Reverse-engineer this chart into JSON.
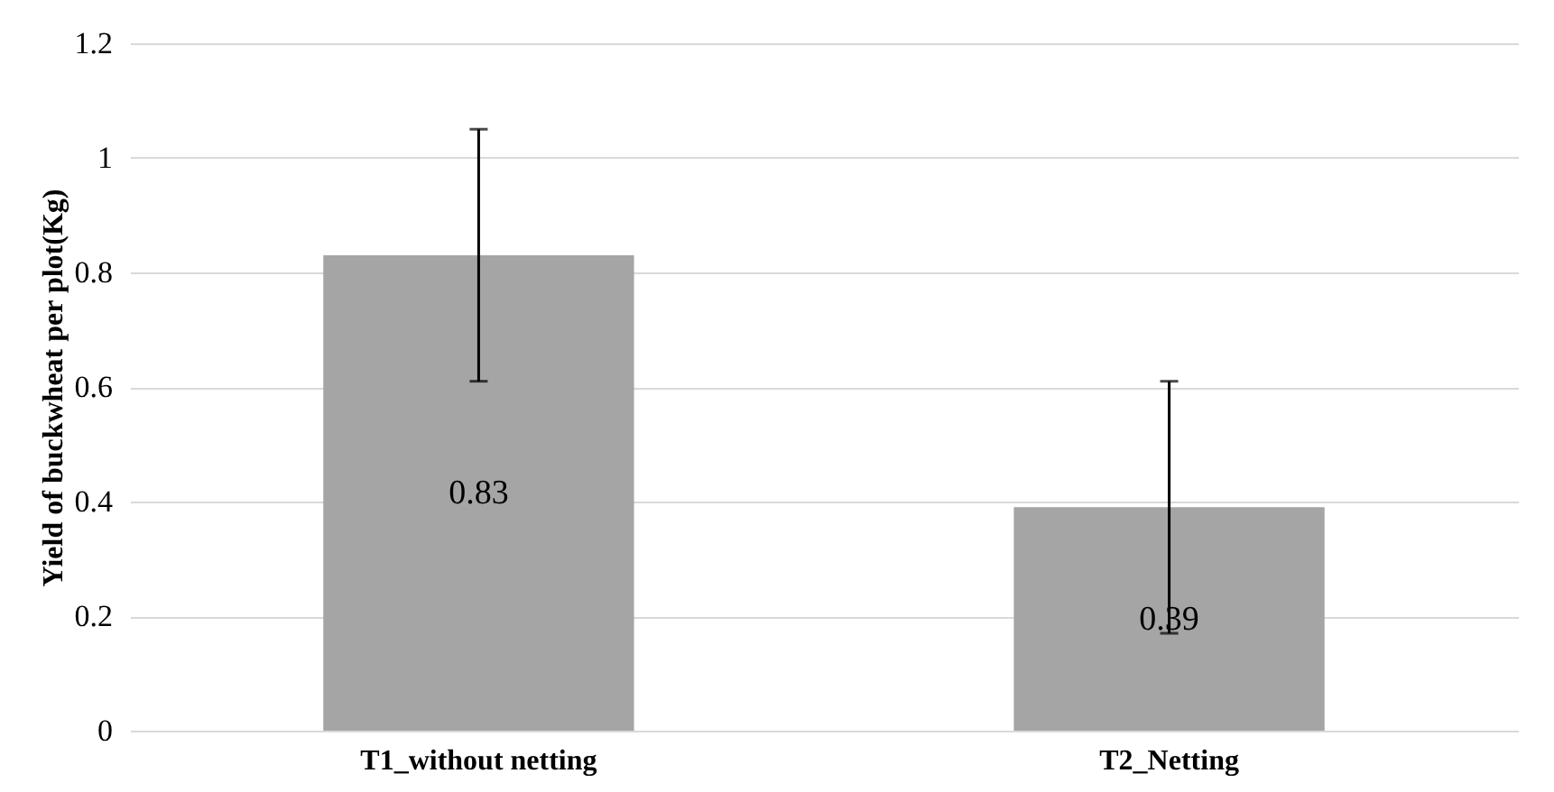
{
  "chart_data": {
    "type": "bar",
    "ylabel": "Yield of buckwheat per plot(Kg)",
    "categories": [
      "T1_without netting",
      "T2_Netting"
    ],
    "values": [
      0.83,
      0.39
    ],
    "color": "#a5a5a5",
    "errors": [
      0.22,
      0.22
    ],
    "ylim": [
      0,
      1.2
    ],
    "yticks": [
      0,
      0.2,
      0.4,
      0.6,
      0.8,
      1,
      1.2
    ],
    "grid": "y",
    "data_labels": true
  }
}
